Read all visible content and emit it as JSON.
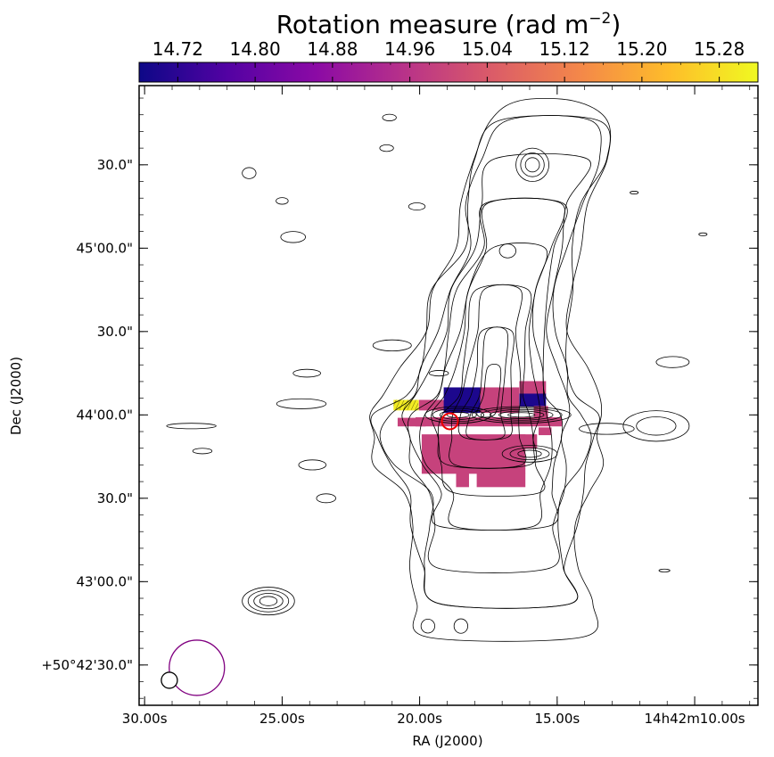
{
  "chart_data": {
    "type": "heatmap",
    "title": "Rotation measure (rad m",
    "title_sup": "−2",
    "title_close": ")",
    "colorbar": {
      "min": 14.68,
      "max": 15.32,
      "tick_labels": [
        "14.72",
        "14.80",
        "14.88",
        "14.96",
        "15.04",
        "15.12",
        "15.20",
        "15.28"
      ],
      "tick_values": [
        14.72,
        14.8,
        14.88,
        14.96,
        15.04,
        15.12,
        15.2,
        15.28
      ],
      "colormap": "plasma",
      "colormap_stops": [
        "#0d0887",
        "#5302a3",
        "#8b0aa5",
        "#b83289",
        "#db5c68",
        "#f48849",
        "#febd2a",
        "#f0f921"
      ]
    },
    "xlabel": "RA (J2000)",
    "ylabel": "Dec (J2000)",
    "x_ticks": [
      {
        "label": "30.00s",
        "ra_sec": 30
      },
      {
        "label": "25.00s",
        "ra_sec": 25
      },
      {
        "label": "20.00s",
        "ra_sec": 20
      },
      {
        "label": "15.00s",
        "ra_sec": 15
      },
      {
        "label": "14h42m10.00s",
        "ra_sec": 10
      }
    ],
    "y_ticks": [
      {
        "label": "+50°42'30.0\"",
        "dec_arcsec": 150
      },
      {
        "label": "43'00.0\"",
        "dec_arcsec": 180
      },
      {
        "label": "30.0\"",
        "dec_arcsec": 210
      },
      {
        "label": "44'00.0\"",
        "dec_arcsec": 240
      },
      {
        "label": "30.0\"",
        "dec_arcsec": 270
      },
      {
        "label": "45'00.0\"",
        "dec_arcsec": 300
      },
      {
        "label": "30.0\"",
        "dec_arcsec": 330
      }
    ],
    "x_range_ra_sec": [
      30.2,
      7.7
    ],
    "y_range_dec_arcsec": [
      135.5,
      358.5
    ],
    "rm_pixels": [
      {
        "ra_sec": 20.5,
        "dec_arcsec": 243.6,
        "ra_size": 0.9,
        "dec_size": 3.6,
        "value": 15.3
      },
      {
        "ra_sec": 19.55,
        "dec_arcsec": 243.6,
        "ra_size": 0.95,
        "dec_size": 3.6,
        "value": 14.99
      },
      {
        "ra_sec": 18.45,
        "dec_arcsec": 245.4,
        "ra_size": 1.35,
        "dec_size": 9.0,
        "value": 14.7
      },
      {
        "ra_sec": 17.1,
        "dec_arcsec": 245.4,
        "ra_size": 1.4,
        "dec_size": 9.0,
        "value": 14.99
      },
      {
        "ra_sec": 15.9,
        "dec_arcsec": 249.9,
        "ra_size": 0.95,
        "dec_size": 4.5,
        "value": 14.99
      },
      {
        "ra_sec": 15.9,
        "dec_arcsec": 245.4,
        "ra_size": 0.95,
        "dec_size": 4.5,
        "value": 14.7
      },
      {
        "ra_sec": 15.6,
        "dec_arcsec": 241.0,
        "ra_size": 0.5,
        "dec_size": 4.4,
        "value": 14.99
      },
      {
        "ra_sec": 20.3,
        "dec_arcsec": 237.5,
        "ra_size": 1.0,
        "dec_size": 2.9,
        "value": 14.99
      },
      {
        "ra_sec": 17.5,
        "dec_arcsec": 237.6,
        "ra_size": 5.3,
        "dec_size": 3.1,
        "value": 14.99
      },
      {
        "ra_sec": 15.45,
        "dec_arcsec": 234.2,
        "ra_size": 0.45,
        "dec_size": 2.6,
        "value": 14.99
      },
      {
        "ra_sec": 18.05,
        "dec_arcsec": 226.0,
        "ra_size": 3.75,
        "dec_size": 14.0,
        "value": 14.99
      },
      {
        "ra_sec": 16.15,
        "dec_arcsec": 230.5,
        "ra_size": 0.8,
        "dec_size": 5.0,
        "value": 14.99
      },
      {
        "ra_sec": 17.05,
        "dec_arcsec": 216.6,
        "ra_size": 1.75,
        "dec_size": 4.8,
        "value": 14.99
      },
      {
        "ra_sec": 18.45,
        "dec_arcsec": 216.6,
        "ra_size": 0.45,
        "dec_size": 4.8,
        "value": 14.99
      }
    ],
    "contour_spine": [
      {
        "dec": 160,
        "ra_c": 16.9,
        "hw": 2.8
      },
      {
        "dec": 172,
        "ra_c": 16.9,
        "hw": 2.9
      },
      {
        "dec": 185,
        "ra_c": 17.3,
        "hw": 3.0
      },
      {
        "dec": 200,
        "ra_c": 17.3,
        "hw": 3.1
      },
      {
        "dec": 212,
        "ra_c": 17.2,
        "hw": 3.3
      },
      {
        "dec": 222,
        "ra_c": 17.5,
        "hw": 4.1
      },
      {
        "dec": 232,
        "ra_c": 17.6,
        "hw": 4.4
      },
      {
        "dec": 240,
        "ra_c": 17.6,
        "hw": 4.4
      },
      {
        "dec": 247,
        "ra_c": 17.4,
        "hw": 3.6
      },
      {
        "dec": 257,
        "ra_c": 17.3,
        "hw": 3.2
      },
      {
        "dec": 270,
        "ra_c": 17.2,
        "hw": 2.7
      },
      {
        "dec": 285,
        "ra_c": 17.0,
        "hw": 2.6
      },
      {
        "dec": 300,
        "ra_c": 16.4,
        "hw": 2.2
      },
      {
        "dec": 316,
        "ra_c": 16.2,
        "hw": 2.4
      },
      {
        "dec": 332,
        "ra_c": 15.6,
        "hw": 2.6
      },
      {
        "dec": 346,
        "ra_c": 15.3,
        "hw": 2.0
      },
      {
        "dec": 353,
        "ra_c": 15.4,
        "hw": 0.9
      }
    ],
    "contour_levels": [
      1.0,
      0.9,
      0.8,
      0.7,
      0.6,
      0.52,
      0.44,
      0.36,
      0.28,
      0.2,
      0.13,
      0.07
    ],
    "contour_blobs": [
      {
        "ra_sec": 15.9,
        "dec_arcsec": 330,
        "ra_r": 0.6,
        "dec_r": 6.0,
        "n": 3
      },
      {
        "ra_sec": 16.3,
        "dec_arcsec": 240,
        "ra_r": 1.8,
        "dec_r": 3.0,
        "n": 5
      },
      {
        "ra_sec": 18.6,
        "dec_arcsec": 240,
        "ra_r": 1.2,
        "dec_r": 3.0,
        "n": 4
      },
      {
        "ra_sec": 16.0,
        "dec_arcsec": 226,
        "ra_r": 1.0,
        "dec_r": 3.0,
        "n": 3
      },
      {
        "ra_sec": 16.8,
        "dec_arcsec": 299,
        "ra_r": 0.3,
        "dec_r": 2.5,
        "n": 1
      },
      {
        "ra_sec": 25.5,
        "dec_arcsec": 173,
        "ra_r": 0.95,
        "dec_r": 5.0,
        "n": 4
      },
      {
        "ra_sec": 19.7,
        "dec_arcsec": 164,
        "ra_r": 0.25,
        "dec_r": 2.5,
        "n": 1
      },
      {
        "ra_sec": 18.5,
        "dec_arcsec": 164,
        "ra_r": 0.25,
        "dec_r": 2.6,
        "n": 1
      },
      {
        "ra_sec": 11.4,
        "dec_arcsec": 236,
        "ra_r": 1.2,
        "dec_r": 5.5,
        "n": 2
      },
      {
        "ra_sec": 13.2,
        "dec_arcsec": 235,
        "ra_r": 1.0,
        "dec_r": 2.0,
        "n": 1
      },
      {
        "ra_sec": 28.3,
        "dec_arcsec": 236,
        "ra_r": 0.9,
        "dec_r": 1.0,
        "n": 1
      },
      {
        "ra_sec": 27.9,
        "dec_arcsec": 227,
        "ra_r": 0.35,
        "dec_r": 1.0,
        "n": 1
      },
      {
        "ra_sec": 24.3,
        "dec_arcsec": 244,
        "ra_r": 0.9,
        "dec_r": 1.8,
        "n": 1
      },
      {
        "ra_sec": 24.1,
        "dec_arcsec": 255,
        "ra_r": 0.5,
        "dec_r": 1.4,
        "n": 1
      },
      {
        "ra_sec": 23.9,
        "dec_arcsec": 222,
        "ra_r": 0.5,
        "dec_r": 1.8,
        "n": 1
      },
      {
        "ra_sec": 23.4,
        "dec_arcsec": 210,
        "ra_r": 0.35,
        "dec_r": 1.6,
        "n": 1
      },
      {
        "ra_sec": 21.0,
        "dec_arcsec": 265,
        "ra_r": 0.7,
        "dec_r": 2.0,
        "n": 1
      },
      {
        "ra_sec": 19.3,
        "dec_arcsec": 255,
        "ra_r": 0.35,
        "dec_r": 1.0,
        "n": 1
      },
      {
        "ra_sec": 24.6,
        "dec_arcsec": 304,
        "ra_r": 0.45,
        "dec_r": 2.0,
        "n": 1
      },
      {
        "ra_sec": 26.2,
        "dec_arcsec": 327,
        "ra_r": 0.25,
        "dec_r": 2.0,
        "n": 1
      },
      {
        "ra_sec": 25.0,
        "dec_arcsec": 317,
        "ra_r": 0.22,
        "dec_r": 1.2,
        "n": 1
      },
      {
        "ra_sec": 20.1,
        "dec_arcsec": 315,
        "ra_r": 0.3,
        "dec_r": 1.3,
        "n": 1
      },
      {
        "ra_sec": 21.2,
        "dec_arcsec": 336,
        "ra_r": 0.25,
        "dec_r": 1.2,
        "n": 1
      },
      {
        "ra_sec": 21.1,
        "dec_arcsec": 347,
        "ra_r": 0.25,
        "dec_r": 1.2,
        "n": 1
      },
      {
        "ra_sec": 10.8,
        "dec_arcsec": 259,
        "ra_r": 0.6,
        "dec_r": 2.0,
        "n": 1
      },
      {
        "ra_sec": 11.1,
        "dec_arcsec": 184,
        "ra_r": 0.2,
        "dec_r": 0.5,
        "n": 1
      },
      {
        "ra_sec": 9.7,
        "dec_arcsec": 305,
        "ra_r": 0.15,
        "dec_r": 0.5,
        "n": 1
      },
      {
        "ra_sec": 12.2,
        "dec_arcsec": 320,
        "ra_r": 0.15,
        "dec_r": 0.5,
        "n": 1
      },
      {
        "ra_sec": 19.5,
        "dec_arcsec": 162,
        "ra_r": 0.0,
        "dec_r": 0.0,
        "n": 0
      }
    ],
    "host_marker": {
      "ra_sec": 18.9,
      "dec_arcsec": 237.7,
      "color": "#ee0000"
    },
    "beam_large": {
      "ra_sec": 28.1,
      "dec_arcsec": 149.0,
      "color": "#800080"
    },
    "beam_small": {
      "ra_sec": 29.1,
      "dec_arcsec": 144.5,
      "color": "#000000"
    }
  }
}
